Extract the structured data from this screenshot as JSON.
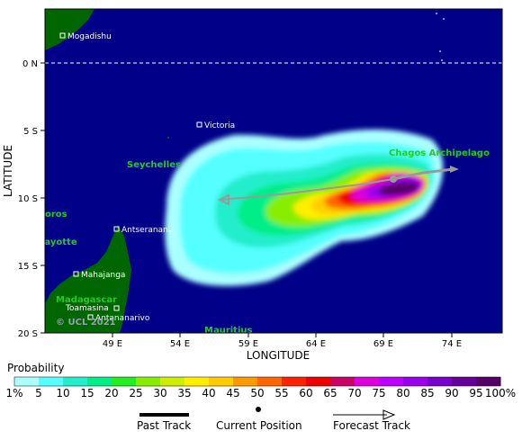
{
  "axes": {
    "y_ticks": [
      "0 N",
      "5 S",
      "10 S",
      "15 S",
      "20 S"
    ],
    "x_ticks": [
      "49 E",
      "54 E",
      "59 E",
      "64 E",
      "69 E",
      "74 E"
    ],
    "xlabel": "LONGITUDE",
    "ylabel": "LATITUDE"
  },
  "places": [
    {
      "name": "Mogadishu",
      "icon": "square-marker-icon"
    },
    {
      "name": "Victoria",
      "icon": "square-marker-icon"
    },
    {
      "name": "Antseranana",
      "icon": "square-marker-icon"
    },
    {
      "name": "Mahajanga",
      "icon": "square-marker-icon"
    },
    {
      "name": "Toamasina",
      "icon": "square-marker-icon"
    },
    {
      "name": "Antananarivo",
      "icon": "square-marker-icon"
    }
  ],
  "regions": [
    "Seychelles",
    "Chagos Archipelago",
    "oros",
    "layotte",
    "Madagascar",
    "Mauritius"
  ],
  "credit": "© UCL 2021",
  "legend": {
    "title": "Probability",
    "scale": [
      "1%",
      "5",
      "10",
      "15",
      "20",
      "25",
      "30",
      "35",
      "40",
      "45",
      "50",
      "55",
      "60",
      "65",
      "70",
      "75",
      "80",
      "85",
      "90",
      "95",
      "100%"
    ],
    "colors": [
      "#aaffff",
      "#55ffff",
      "#22eecc",
      "#00ee88",
      "#22ee22",
      "#88ee00",
      "#ccee00",
      "#ffee00",
      "#ffcc00",
      "#ff9900",
      "#ff6600",
      "#ff2200",
      "#ee0000",
      "#cc0066",
      "#dd00dd",
      "#bb00ff",
      "#9900ee",
      "#7700cc",
      "#660099",
      "#550066"
    ],
    "past_track": "Past Track",
    "current_position": "Current Position",
    "forecast_track": "Forecast Track"
  },
  "colors": {
    "ocean": "#000088",
    "land": "#006600",
    "track": "#9a9a9a"
  }
}
